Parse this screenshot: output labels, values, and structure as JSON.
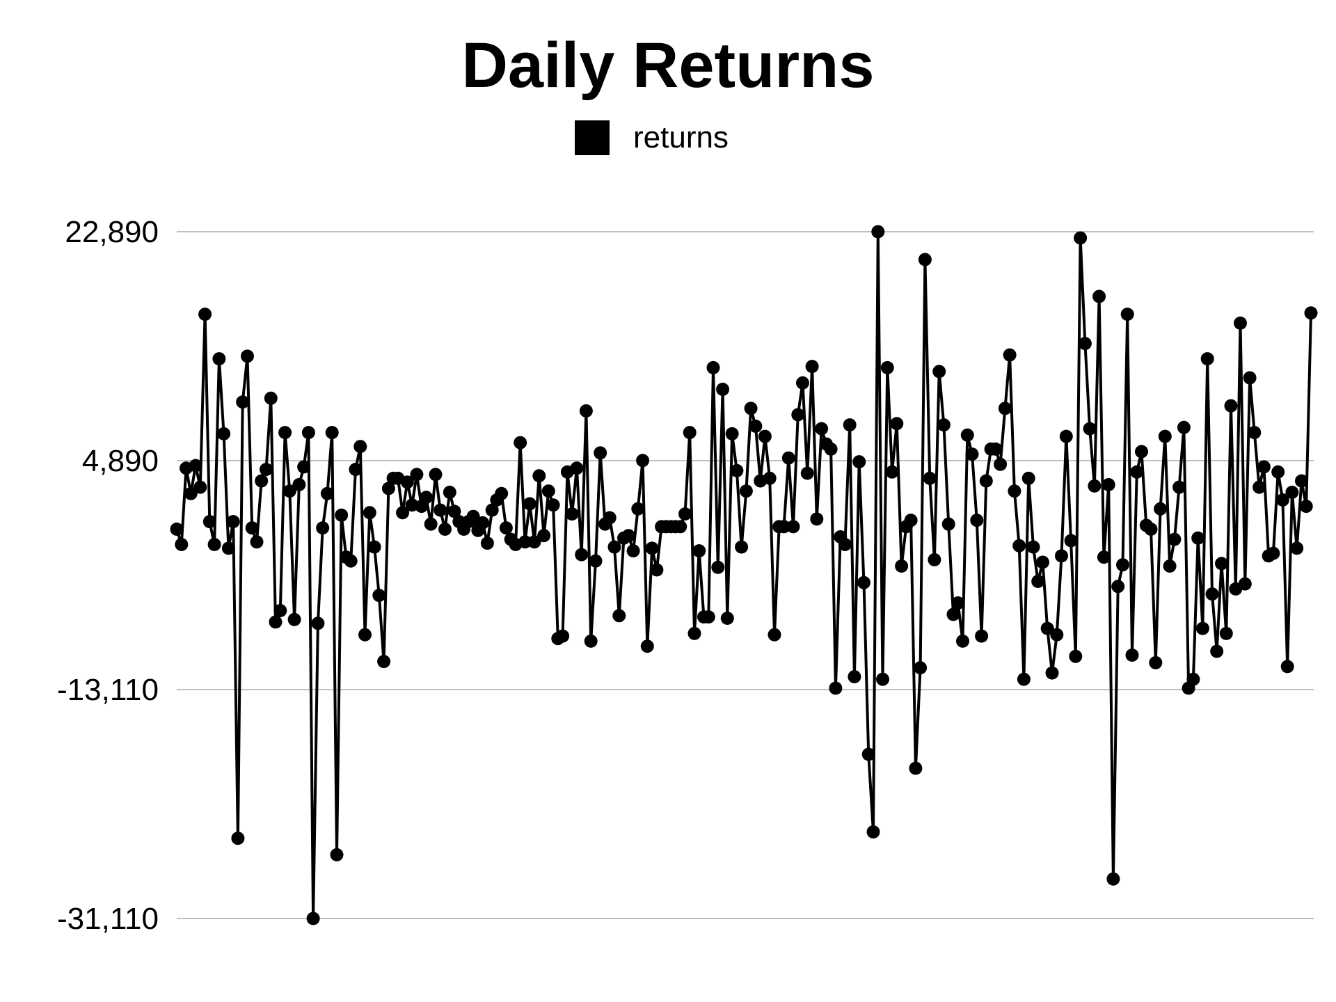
{
  "title": "Daily Returns",
  "legend": {
    "label": "returns",
    "color": "#000000"
  },
  "colors": {
    "series": "#000000",
    "grid": "#aaaaaa",
    "background": "#ffffff"
  },
  "chart_data": {
    "type": "line",
    "title": "Daily Returns",
    "xlabel": "",
    "ylabel": "",
    "ylim": [
      -31110,
      22890
    ],
    "yticks": [
      22890,
      4890,
      -13110,
      -31110
    ],
    "ytick_labels": [
      "22,890",
      "4,890",
      "-13,110",
      "-31,110"
    ],
    "grid": "horizontal",
    "legend_position": "top-center",
    "markers": true,
    "series": [
      {
        "name": "returns",
        "color": "#000000",
        "values": [
          -500,
          -1700,
          4300,
          2300,
          4500,
          2800,
          16400,
          100,
          -1700,
          12900,
          7000,
          -2000,
          100,
          -24800,
          9500,
          13100,
          -400,
          -1500,
          3300,
          4200,
          9800,
          -7800,
          -6900,
          7100,
          2500,
          -7600,
          3000,
          4400,
          7100,
          -31110,
          -7900,
          -400,
          2300,
          7100,
          -26100,
          600,
          -2700,
          -3000,
          4200,
          6000,
          -8800,
          800,
          -1900,
          -5700,
          -10900,
          2700,
          3500,
          3500,
          800,
          3200,
          1400,
          3800,
          1300,
          2000,
          -100,
          3800,
          1000,
          -500,
          2400,
          900,
          100,
          -500,
          100,
          500,
          -600,
          0,
          -1600,
          1000,
          1800,
          2300,
          -400,
          -1300,
          -1700,
          6300,
          -1500,
          1500,
          -1500,
          3700,
          -1000,
          2500,
          1400,
          -9100,
          -8900,
          4000,
          700,
          4300,
          -2500,
          8800,
          -9300,
          -3000,
          5500,
          -100,
          400,
          -1900,
          -7300,
          -1200,
          -1000,
          -2200,
          1100,
          4900,
          -9700,
          -2000,
          -3700,
          -300,
          -300,
          -300,
          -300,
          -300,
          700,
          7100,
          -8700,
          -2200,
          -7400,
          -7400,
          12200,
          -3500,
          10500,
          -7500,
          7000,
          4100,
          -1900,
          2500,
          9000,
          7600,
          3300,
          6800,
          3500,
          -8800,
          -300,
          -300,
          5100,
          -300,
          8500,
          11000,
          3900,
          12300,
          300,
          7400,
          6200,
          5800,
          -13000,
          -1100,
          -1700,
          7700,
          -12100,
          4800,
          -4700,
          -18200,
          -24300,
          22890,
          -12300,
          12200,
          4000,
          7800,
          -3400,
          -300,
          200,
          -19300,
          -11400,
          20700,
          3500,
          -2900,
          11900,
          7700,
          -100,
          -7200,
          -6300,
          -9300,
          6900,
          5400,
          200,
          -8900,
          3300,
          5800,
          5800,
          4600,
          9000,
          13200,
          2500,
          -1800,
          -12300,
          3500,
          -1900,
          -4600,
          -3100,
          -8300,
          -11800,
          -8800,
          -2600,
          6800,
          -1400,
          -10500,
          22400,
          14100,
          7400,
          2900,
          17800,
          -2700,
          3000,
          -28000,
          -5000,
          -3300,
          16400,
          -10400,
          4000,
          5600,
          -200,
          -500,
          -11000,
          1100,
          6800,
          -3400,
          -1300,
          2800,
          7500,
          -13000,
          -12300,
          -1200,
          -8300,
          12900,
          -5600,
          -10100,
          -3200,
          -8700,
          9200,
          -5200,
          15700,
          -4800,
          11400,
          7100,
          2800,
          4400,
          -2600,
          -2400,
          4000,
          1800,
          -11300,
          2400,
          -2000,
          3300,
          1300,
          16500
        ]
      }
    ]
  }
}
